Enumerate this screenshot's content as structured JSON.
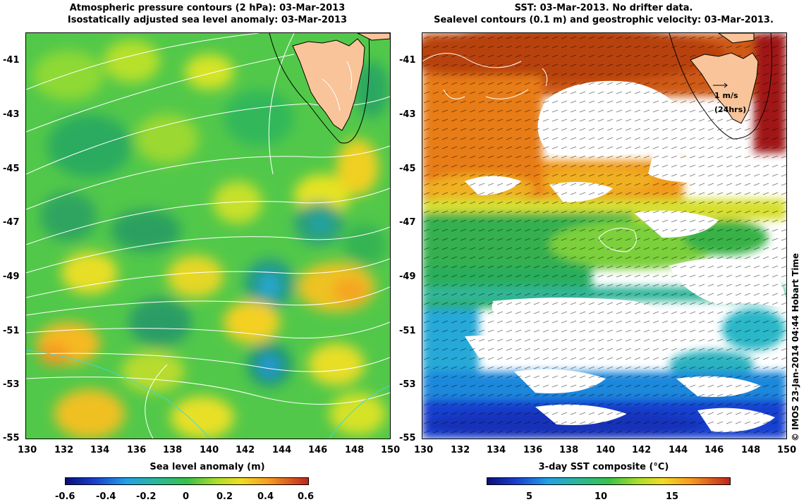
{
  "left_panel": {
    "title_line1": "Atmospheric pressure contours (2 hPa): 03-Mar-2013",
    "title_line2": "Isostatically adjusted sea level anomaly: 03-Mar-2013",
    "x_ticks": [
      "130",
      "132",
      "134",
      "136",
      "138",
      "140",
      "142",
      "144",
      "146",
      "148",
      "150"
    ],
    "y_ticks": [
      "-41",
      "-43",
      "-45",
      "-47",
      "-49",
      "-51",
      "-53",
      "-55"
    ],
    "colorbar_title": "Sea level anomaly (m)",
    "colorbar_ticks": [
      "-0.6",
      "-0.4",
      "-0.2",
      "0",
      "0.2",
      "0.4",
      "0.6"
    ],
    "colorbar_range": [
      -0.6,
      0.6
    ]
  },
  "right_panel": {
    "title_line1": "SST: 03-Mar-2013. No drifter data.",
    "title_line2": "Sealevel contours (0.1 m) and geostrophic velocity: 03-Mar-2013.",
    "x_ticks": [
      "130",
      "132",
      "134",
      "136",
      "138",
      "140",
      "142",
      "144",
      "146",
      "148",
      "150"
    ],
    "y_ticks": [
      "-41",
      "-43",
      "-45",
      "-47",
      "-49",
      "-51",
      "-53",
      "-55"
    ],
    "colorbar_title": "3-day SST composite (°C)",
    "colorbar_ticks": [
      "5",
      "10",
      "15"
    ],
    "colorbar_range": [
      2,
      19
    ],
    "scale_label": "1 m/s",
    "scale_sublabel": "(24hrs)"
  },
  "map_extent": {
    "lon": [
      130,
      150
    ],
    "lat": [
      -55,
      -40
    ]
  },
  "stamp": "© IMOS 23-Jan-2014 04:44 Hobart Time",
  "colors": {
    "land": "#f9c499",
    "contour": "#ffffff",
    "coast": "#000000"
  }
}
